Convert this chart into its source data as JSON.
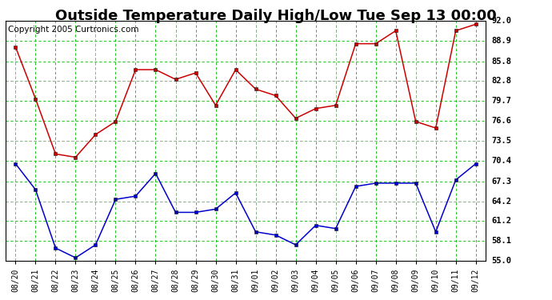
{
  "title": "Outside Temperature Daily High/Low Tue Sep 13 00:00",
  "copyright": "Copyright 2005 Curtronics.com",
  "x_labels": [
    "08/20",
    "08/21",
    "08/22",
    "08/23",
    "08/24",
    "08/25",
    "08/26",
    "08/27",
    "08/28",
    "08/29",
    "08/30",
    "08/31",
    "09/01",
    "09/02",
    "09/03",
    "09/04",
    "09/05",
    "09/06",
    "09/07",
    "09/08",
    "09/09",
    "09/10",
    "09/11",
    "09/12"
  ],
  "high_temps": [
    88.0,
    80.0,
    71.5,
    71.0,
    74.5,
    76.5,
    84.5,
    84.5,
    83.0,
    84.0,
    79.0,
    84.5,
    81.5,
    80.5,
    77.0,
    78.5,
    79.0,
    88.5,
    88.5,
    90.5,
    76.5,
    75.5,
    90.5,
    91.5
  ],
  "low_temps": [
    70.0,
    66.0,
    57.0,
    55.5,
    57.5,
    64.5,
    65.0,
    68.5,
    62.5,
    62.5,
    63.0,
    65.5,
    59.5,
    59.0,
    57.5,
    60.5,
    60.0,
    66.5,
    67.0,
    67.0,
    67.0,
    59.5,
    67.5,
    70.0
  ],
  "y_ticks": [
    55.0,
    58.1,
    61.2,
    64.2,
    67.3,
    70.4,
    73.5,
    76.6,
    79.7,
    82.8,
    85.8,
    88.9,
    92.0
  ],
  "y_min": 55.0,
  "y_max": 92.0,
  "high_color": "#cc0000",
  "low_color": "#0000cc",
  "grid_color_major": "#aaaaaa",
  "grid_color_minor": "#00bb00",
  "bg_color": "#ffffff",
  "title_fontsize": 13,
  "copyright_fontsize": 7.5
}
